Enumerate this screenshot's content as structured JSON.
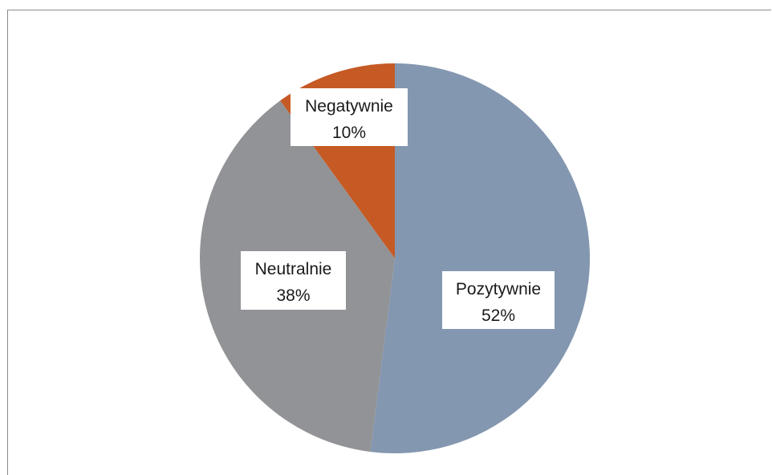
{
  "chart_data": {
    "type": "pie",
    "title": "",
    "start_angle_deg": 0,
    "direction": "clockwise",
    "slices": [
      {
        "label": "Pozytywnie",
        "value": 52,
        "value_label": "52%",
        "color": "#8497b0"
      },
      {
        "label": "Neutralnie",
        "value": 38,
        "value_label": "38%",
        "color": "#929396"
      },
      {
        "label": "Negatywnie",
        "value": 10,
        "value_label": "10%",
        "color": "#c55a25"
      }
    ]
  }
}
